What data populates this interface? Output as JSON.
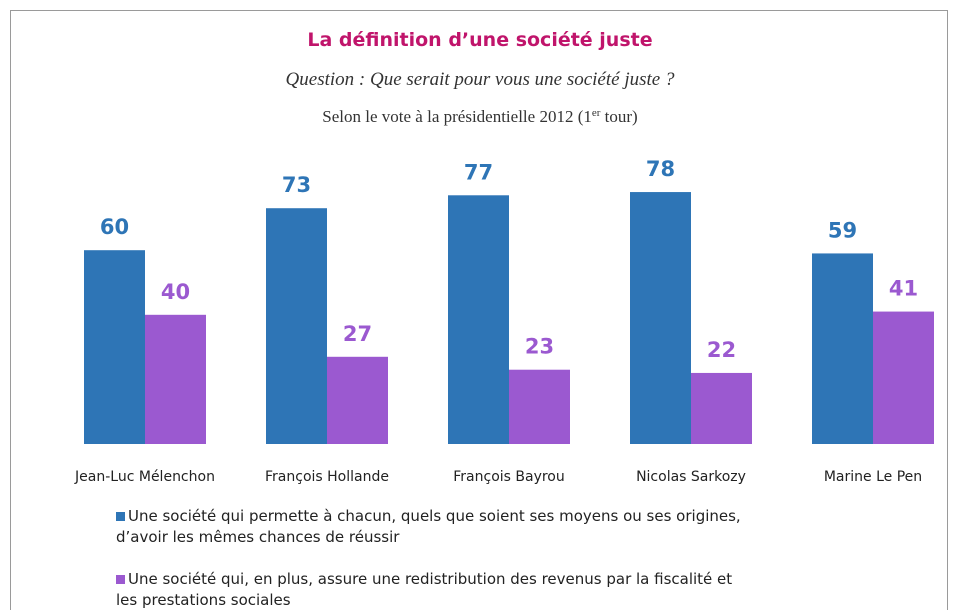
{
  "chart_data": {
    "type": "bar",
    "title": "La définition d’une société juste",
    "subtitle": "Question : Que serait pour vous une société juste ?",
    "subtitle2": [
      "Selon le vote à la présidentielle 2012 (1",
      "er",
      " tour)"
    ],
    "categories": [
      "Jean-Luc Mélenchon",
      "François Hollande",
      "François Bayrou",
      "Nicolas Sarkozy",
      "Marine Le Pen"
    ],
    "series": [
      {
        "name": "Une société qui permette à chacun, quels que soient ses moyens ou ses origines, d’avoir les mêmes chances de réussir",
        "color": "#2e75b6",
        "values": [
          60,
          73,
          77,
          78,
          59
        ]
      },
      {
        "name": "Une société qui, en plus, assure une redistribution des revenus par la fiscalité et les prestations sociales",
        "color": "#9b59d0",
        "values": [
          40,
          27,
          23,
          22,
          41
        ]
      }
    ],
    "ylim": [
      0,
      100
    ]
  }
}
